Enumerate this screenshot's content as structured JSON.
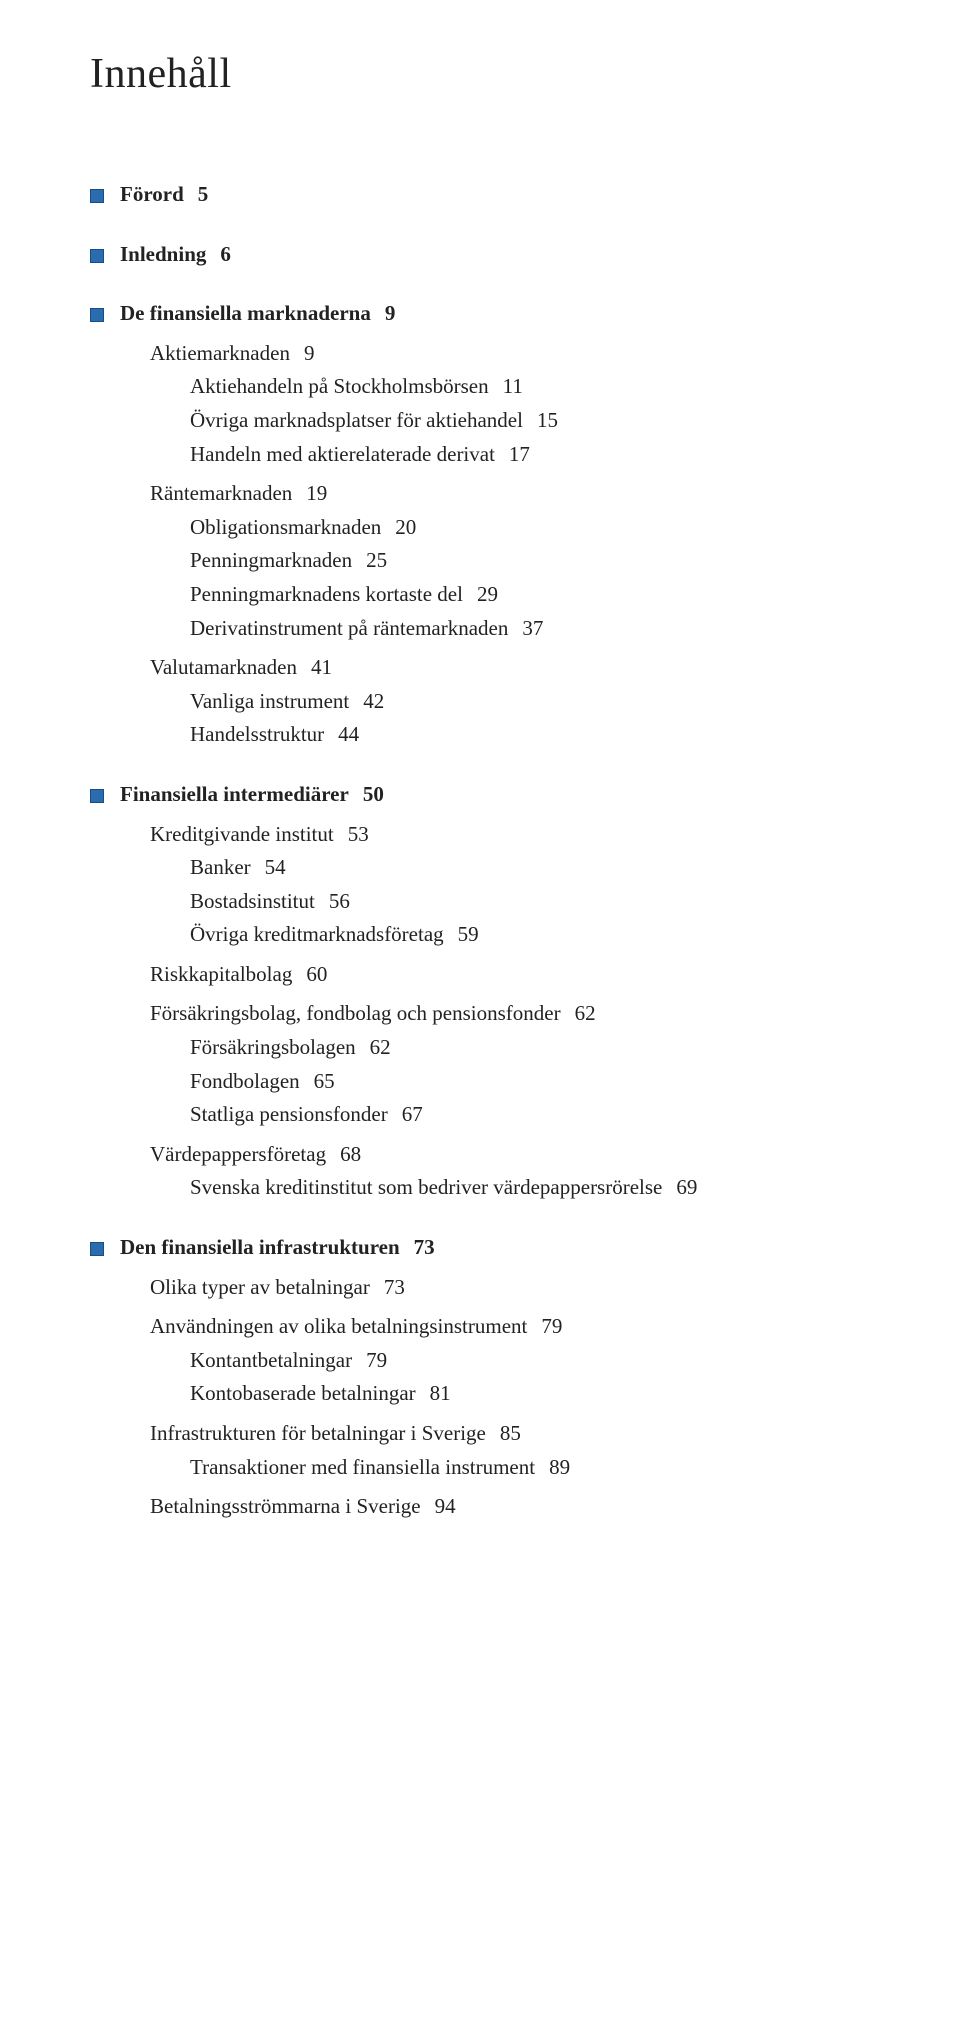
{
  "title": "Innehåll",
  "colors": {
    "bullet_fill": "#2b6cb0",
    "bullet_border": "#1a4d80",
    "text": "#222222",
    "background": "#ffffff"
  },
  "entries": [
    {
      "label": "Förord",
      "page": "5",
      "level": 0,
      "bullet": true,
      "bold": true,
      "gapBefore": "none"
    },
    {
      "label": "Inledning",
      "page": "6",
      "level": 0,
      "bullet": true,
      "bold": true,
      "gapBefore": "section"
    },
    {
      "label": "De finansiella marknaderna",
      "page": "9",
      "level": 0,
      "bullet": true,
      "bold": true,
      "gapBefore": "section"
    },
    {
      "label": "Aktiemarknaden",
      "page": "9",
      "level": 1,
      "bullet": false,
      "bold": false,
      "gapBefore": "sub"
    },
    {
      "label": "Aktiehandeln på Stockholmsbörsen",
      "page": "11",
      "level": 2,
      "bullet": false,
      "bold": false,
      "gapBefore": "none"
    },
    {
      "label": "Övriga marknadsplatser för aktiehandel",
      "page": "15",
      "level": 2,
      "bullet": false,
      "bold": false,
      "gapBefore": "none"
    },
    {
      "label": "Handeln med aktierelaterade derivat",
      "page": "17",
      "level": 2,
      "bullet": false,
      "bold": false,
      "gapBefore": "none"
    },
    {
      "label": "Räntemarknaden",
      "page": "19",
      "level": 1,
      "bullet": false,
      "bold": false,
      "gapBefore": "sub"
    },
    {
      "label": "Obligationsmarknaden",
      "page": "20",
      "level": 2,
      "bullet": false,
      "bold": false,
      "gapBefore": "none"
    },
    {
      "label": "Penningmarknaden",
      "page": "25",
      "level": 2,
      "bullet": false,
      "bold": false,
      "gapBefore": "none"
    },
    {
      "label": "Penningmarknadens kortaste del",
      "page": "29",
      "level": 2,
      "bullet": false,
      "bold": false,
      "gapBefore": "none"
    },
    {
      "label": "Derivatinstrument på räntemarknaden",
      "page": "37",
      "level": 2,
      "bullet": false,
      "bold": false,
      "gapBefore": "none"
    },
    {
      "label": "Valutamarknaden",
      "page": "41",
      "level": 1,
      "bullet": false,
      "bold": false,
      "gapBefore": "sub"
    },
    {
      "label": "Vanliga instrument",
      "page": "42",
      "level": 2,
      "bullet": false,
      "bold": false,
      "gapBefore": "none"
    },
    {
      "label": "Handelsstruktur",
      "page": "44",
      "level": 2,
      "bullet": false,
      "bold": false,
      "gapBefore": "none"
    },
    {
      "label": "Finansiella intermediärer",
      "page": "50",
      "level": 0,
      "bullet": true,
      "bold": true,
      "gapBefore": "section"
    },
    {
      "label": "Kreditgivande institut",
      "page": "53",
      "level": 1,
      "bullet": false,
      "bold": false,
      "gapBefore": "sub"
    },
    {
      "label": "Banker",
      "page": "54",
      "level": 2,
      "bullet": false,
      "bold": false,
      "gapBefore": "none"
    },
    {
      "label": "Bostadsinstitut",
      "page": "56",
      "level": 2,
      "bullet": false,
      "bold": false,
      "gapBefore": "none"
    },
    {
      "label": "Övriga kreditmarknadsföretag",
      "page": "59",
      "level": 2,
      "bullet": false,
      "bold": false,
      "gapBefore": "none"
    },
    {
      "label": "Riskkapitalbolag",
      "page": "60",
      "level": 1,
      "bullet": false,
      "bold": false,
      "gapBefore": "sub"
    },
    {
      "label": "Försäkringsbolag, fondbolag och pensionsfonder",
      "page": "62",
      "level": 1,
      "bullet": false,
      "bold": false,
      "gapBefore": "sub"
    },
    {
      "label": "Försäkringsbolagen",
      "page": "62",
      "level": 2,
      "bullet": false,
      "bold": false,
      "gapBefore": "none"
    },
    {
      "label": "Fondbolagen",
      "page": "65",
      "level": 2,
      "bullet": false,
      "bold": false,
      "gapBefore": "none"
    },
    {
      "label": "Statliga pensionsfonder",
      "page": "67",
      "level": 2,
      "bullet": false,
      "bold": false,
      "gapBefore": "none"
    },
    {
      "label": "Värdepappersföretag",
      "page": "68",
      "level": 1,
      "bullet": false,
      "bold": false,
      "gapBefore": "sub"
    },
    {
      "label": "Svenska kreditinstitut som bedriver värdepappersrörelse",
      "page": "69",
      "level": 2,
      "bullet": false,
      "bold": false,
      "gapBefore": "none"
    },
    {
      "label": "Den finansiella infrastrukturen",
      "page": "73",
      "level": 0,
      "bullet": true,
      "bold": true,
      "gapBefore": "section"
    },
    {
      "label": "Olika typer av betalningar",
      "page": "73",
      "level": 1,
      "bullet": false,
      "bold": false,
      "gapBefore": "sub"
    },
    {
      "label": "Användningen av olika betalningsinstrument",
      "page": "79",
      "level": 1,
      "bullet": false,
      "bold": false,
      "gapBefore": "sub"
    },
    {
      "label": "Kontantbetalningar",
      "page": "79",
      "level": 2,
      "bullet": false,
      "bold": false,
      "gapBefore": "none"
    },
    {
      "label": "Kontobaserade betalningar",
      "page": "81",
      "level": 2,
      "bullet": false,
      "bold": false,
      "gapBefore": "none"
    },
    {
      "label": "Infrastrukturen för betalningar i Sverige",
      "page": "85",
      "level": 1,
      "bullet": false,
      "bold": false,
      "gapBefore": "sub"
    },
    {
      "label": "Transaktioner med finansiella instrument",
      "page": "89",
      "level": 2,
      "bullet": false,
      "bold": false,
      "gapBefore": "none"
    },
    {
      "label": "Betalningsströmmarna i Sverige",
      "page": "94",
      "level": 1,
      "bullet": false,
      "bold": false,
      "gapBefore": "sub"
    }
  ]
}
